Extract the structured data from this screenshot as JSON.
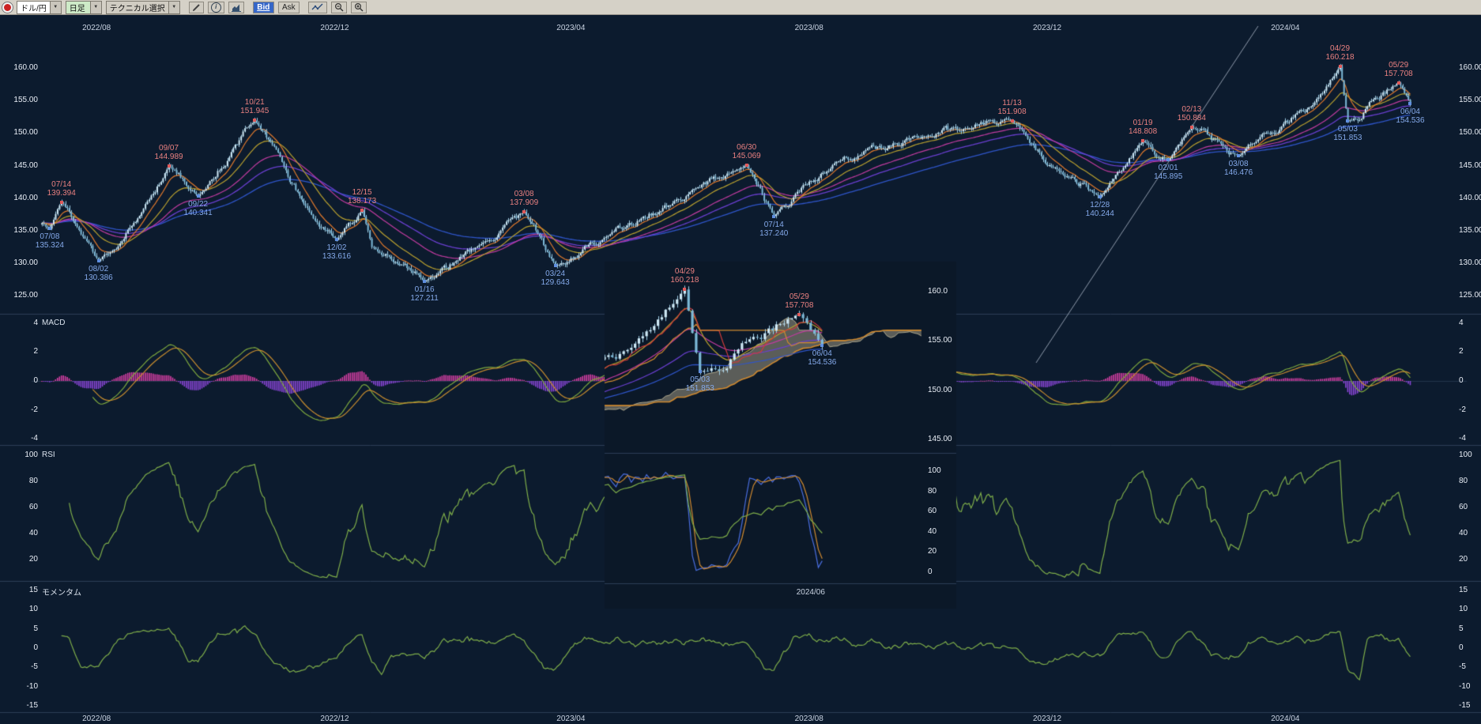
{
  "toolbar": {
    "pair": "ドル/円",
    "timeframe": "日足",
    "technical": "テクニカル選択",
    "bid": "Bid",
    "ask": "Ask"
  },
  "colors": {
    "toolbar_bg": "#d5d1c7",
    "bg": "#0c1b2e",
    "inset_bg": "#0b1828",
    "separator": "#2c3e57",
    "zero_line": "#22334a",
    "axis_text": "#e9eef6",
    "date_text": "#c9d3e2",
    "candle_up": "#cfe9f6",
    "candle_down": "#7cb9d8",
    "wick": "#9fcde4",
    "ma_fast": "#e0792c",
    "ma_mid": "#b9a02e",
    "ma_50": "#c23ba0",
    "ma_slow": "#6a3fd0",
    "ma_slowest": "#2f55c9",
    "tenkan": "#cc3b3b",
    "kijun": "#d08a30",
    "cloud": "rgba(158,152,130,0.55)",
    "cloud_edge": "rgba(205,195,160,0.8)",
    "macd_hist_pos": "#d63fa4",
    "macd_hist_neg": "#8a46d8",
    "macd_line": "#7ea83e",
    "macd_signal": "#c98e2e",
    "rsi_line": "#7ead4a",
    "momentum_line": "#7ead4a",
    "stoch_k": "#4a6ee0",
    "stoch_d": "#d08a30",
    "annotation_high": "#e98080",
    "annotation_low": "#84a9ea",
    "bid_active_bg": "#3566c8",
    "callout_line": "rgba(185,196,212,0.75)"
  },
  "chart_data": {
    "type": "candlestick",
    "pair": "ドル/円",
    "timeframe": "日足",
    "date_start": "2022-07-04",
    "date_end": "2024-06-04",
    "top_axis_dates": [
      "2022/08",
      "2022/12",
      "2023/04",
      "2023/08",
      "2023/12",
      "2024/04"
    ],
    "bottom_axis_dates": [
      "2022/08",
      "2022/12",
      "2023/04",
      "2023/08",
      "2023/12",
      "2024/04"
    ],
    "main_panel": {
      "price_tick_labels": [
        "160.00",
        "155.00",
        "150.00",
        "145.00",
        "140.00",
        "135.00",
        "130.00",
        "125.00"
      ],
      "price_tick_values": [
        160,
        155,
        150,
        145,
        140,
        135,
        130,
        125
      ],
      "annotations": [
        {
          "date": "2022-07-08",
          "label_date": "07/08",
          "label_price": "135.324",
          "value": 135.324,
          "kind": "low"
        },
        {
          "date": "2022-07-14",
          "label_date": "07/14",
          "label_price": "139.394",
          "value": 139.394,
          "kind": "high"
        },
        {
          "date": "2022-08-02",
          "label_date": "08/02",
          "label_price": "130.386",
          "value": 130.386,
          "kind": "low"
        },
        {
          "date": "2022-09-07",
          "label_date": "09/07",
          "label_price": "144.989",
          "value": 144.989,
          "kind": "high"
        },
        {
          "date": "2022-09-22",
          "label_date": "09/22",
          "label_price": "140.341",
          "value": 140.341,
          "kind": "low"
        },
        {
          "date": "2022-10-21",
          "label_date": "10/21",
          "label_price": "151.945",
          "value": 151.945,
          "kind": "high"
        },
        {
          "date": "2022-12-02",
          "label_date": "12/02",
          "label_price": "133.616",
          "value": 133.616,
          "kind": "low"
        },
        {
          "date": "2022-12-15",
          "label_date": "12/15",
          "label_price": "138.173",
          "value": 138.173,
          "kind": "high"
        },
        {
          "date": "2023-01-16",
          "label_date": "01/16",
          "label_price": "127.211",
          "value": 127.211,
          "kind": "low"
        },
        {
          "date": "2023-03-08",
          "label_date": "03/08",
          "label_price": "137.909",
          "value": 137.909,
          "kind": "high"
        },
        {
          "date": "2023-03-24",
          "label_date": "03/24",
          "label_price": "129.643",
          "value": 129.643,
          "kind": "low"
        },
        {
          "date": "2023-06-30",
          "label_date": "06/30",
          "label_price": "145.069",
          "value": 145.069,
          "kind": "high"
        },
        {
          "date": "2023-07-14",
          "label_date": "07/14",
          "label_price": "137.240",
          "value": 137.24,
          "kind": "low"
        },
        {
          "date": "2023-11-13",
          "label_date": "11/13",
          "label_price": "151.908",
          "value": 151.908,
          "kind": "high"
        },
        {
          "date": "2023-12-28",
          "label_date": "12/28",
          "label_price": "140.244",
          "value": 140.244,
          "kind": "low"
        },
        {
          "date": "2024-01-19",
          "label_date": "01/19",
          "label_price": "148.808",
          "value": 148.808,
          "kind": "high"
        },
        {
          "date": "2024-02-01",
          "label_date": "02/01",
          "label_price": "145.895",
          "value": 145.895,
          "kind": "low"
        },
        {
          "date": "2024-02-13",
          "label_date": "02/13",
          "label_price": "150.884",
          "value": 150.884,
          "kind": "high"
        },
        {
          "date": "2024-03-08",
          "label_date": "03/08",
          "label_price": "146.476",
          "value": 146.476,
          "kind": "low"
        },
        {
          "date": "2024-04-29",
          "label_date": "04/29",
          "label_price": "160.218",
          "value": 160.218,
          "kind": "high"
        },
        {
          "date": "2024-05-03",
          "label_date": "05/03",
          "label_price": "151.853",
          "value": 151.853,
          "kind": "low"
        },
        {
          "date": "2024-05-29",
          "label_date": "05/29",
          "label_price": "157.708",
          "value": 157.708,
          "kind": "high"
        },
        {
          "date": "2024-06-04",
          "label_date": "06/04",
          "label_price": "154.536",
          "value": 154.536,
          "kind": "low"
        }
      ],
      "anchors": [
        [
          "2022-07-04",
          136.2
        ],
        [
          "2022-07-08",
          135.324
        ],
        [
          "2022-07-14",
          139.394
        ],
        [
          "2022-07-22",
          135.6
        ],
        [
          "2022-08-02",
          130.386
        ],
        [
          "2022-08-11",
          132.2
        ],
        [
          "2022-08-23",
          137.3
        ],
        [
          "2022-09-07",
          144.989
        ],
        [
          "2022-09-22",
          140.341
        ],
        [
          "2022-10-21",
          151.945
        ],
        [
          "2022-11-01",
          147.5
        ],
        [
          "2022-11-15",
          139.2
        ],
        [
          "2022-12-02",
          133.616
        ],
        [
          "2022-12-15",
          138.173
        ],
        [
          "2022-12-20",
          132.5
        ],
        [
          "2023-01-16",
          127.211
        ],
        [
          "2023-02-15",
          133.2
        ],
        [
          "2023-03-08",
          137.909
        ],
        [
          "2023-03-24",
          129.643
        ],
        [
          "2023-04-20",
          134.2
        ],
        [
          "2023-05-25",
          139.8
        ],
        [
          "2023-06-30",
          145.069
        ],
        [
          "2023-07-14",
          137.24
        ],
        [
          "2023-08-15",
          145.6
        ],
        [
          "2023-09-27",
          149.2
        ],
        [
          "2023-11-13",
          151.908
        ],
        [
          "2023-12-07",
          144.2
        ],
        [
          "2023-12-28",
          140.244
        ],
        [
          "2024-01-19",
          148.808
        ],
        [
          "2024-02-01",
          145.895
        ],
        [
          "2024-02-13",
          150.884
        ],
        [
          "2024-03-08",
          146.476
        ],
        [
          "2024-04-15",
          154.3
        ],
        [
          "2024-04-29",
          160.218
        ],
        [
          "2024-05-03",
          151.853
        ],
        [
          "2024-05-29",
          157.708
        ],
        [
          "2024-06-04",
          154.536
        ]
      ]
    },
    "macd_panel": {
      "label": "MACD",
      "tick_labels": [
        "4",
        "2",
        "0",
        "-2",
        "-4"
      ],
      "tick_values": [
        4,
        2,
        0,
        -2,
        -4
      ]
    },
    "rsi_panel": {
      "label": "RSI",
      "tick_labels": [
        "100",
        "80",
        "60",
        "40",
        "20"
      ],
      "tick_values": [
        100,
        80,
        60,
        40,
        20
      ]
    },
    "momentum_panel": {
      "label": "モメンタム",
      "tick_labels": [
        "15",
        "10",
        "5",
        "0",
        "-5",
        "-10",
        "-15"
      ],
      "tick_values": [
        15,
        10,
        5,
        0,
        -5,
        -10,
        -15
      ]
    },
    "inset": {
      "date_start": "2024-04-08",
      "price_tick_labels": [
        "160.0",
        "155.00",
        "150.00",
        "145.00"
      ],
      "price_tick_values": [
        160,
        155,
        150,
        145
      ],
      "sub_tick_labels": [
        "100",
        "80",
        "60",
        "40",
        "20",
        "0"
      ],
      "sub_tick_values": [
        100,
        80,
        60,
        40,
        20,
        0
      ],
      "date_label": "2024/06",
      "annotations": [
        {
          "date": "2024-04-29",
          "label_date": "04/29",
          "label_price": "160.218",
          "value": 160.218,
          "kind": "high"
        },
        {
          "date": "2024-05-29",
          "label_date": "05/29",
          "label_price": "157.708",
          "value": 157.708,
          "kind": "high"
        },
        {
          "date": "2024-05-03",
          "label_date": "05/03",
          "label_price": "151.853",
          "value": 151.853,
          "kind": "low"
        },
        {
          "date": "2024-06-04",
          "label_date": "06/04",
          "label_price": "154.536",
          "value": 154.536,
          "kind": "low"
        }
      ]
    }
  }
}
